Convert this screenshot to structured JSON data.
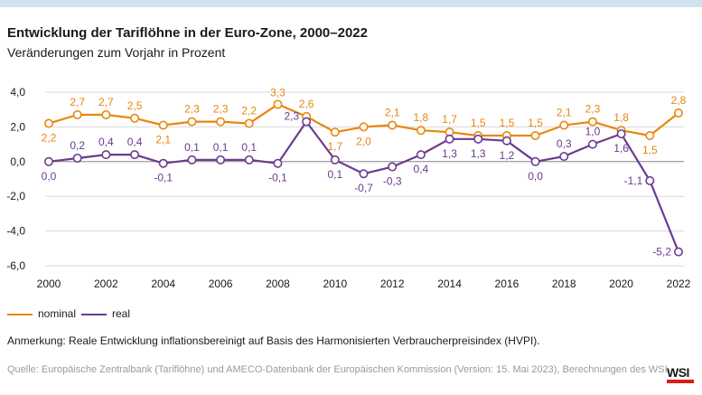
{
  "chart_data": {
    "type": "line",
    "title": "Entwicklung der Tariflöhne in der Euro-Zone, 2000–2022",
    "subtitle": "Veränderungen zum Vorjahr in Prozent",
    "x": [
      2000,
      2001,
      2002,
      2003,
      2004,
      2005,
      2006,
      2007,
      2008,
      2009,
      2010,
      2011,
      2012,
      2013,
      2014,
      2015,
      2016,
      2017,
      2018,
      2019,
      2020,
      2021,
      2022
    ],
    "x_tick_labels": [
      "2000",
      "2002",
      "2004",
      "2006",
      "2008",
      "2010",
      "2012",
      "2014",
      "2016",
      "2018",
      "2020",
      "2022"
    ],
    "y_tick_labels": [
      "4,0",
      "2,0",
      "0,0",
      "-2,0",
      "-4,0",
      "-6,0"
    ],
    "y_ticks": [
      4,
      2,
      0,
      -2,
      -4,
      -6
    ],
    "ylim": [
      -6,
      4
    ],
    "series": [
      {
        "name": "nominal",
        "color": "#e8860f",
        "values": [
          2.2,
          2.7,
          2.7,
          2.5,
          2.1,
          2.3,
          2.3,
          2.2,
          3.3,
          2.6,
          1.7,
          2.0,
          2.1,
          1.8,
          1.7,
          1.5,
          1.5,
          1.5,
          2.1,
          2.3,
          1.8,
          1.5,
          2.8
        ],
        "labels": [
          "2,2",
          "2,7",
          "2,7",
          "2,5",
          "2,1",
          "2,3",
          "2,3",
          "2,2",
          "3,3",
          "2,6",
          "1,7",
          "2,0",
          "2,1",
          "1,8",
          "1,7",
          "1,5",
          "1,5",
          "1,5",
          "2,1",
          "2,3",
          "1,8",
          "1,5",
          "2,8"
        ]
      },
      {
        "name": "real",
        "color": "#6b3b8f",
        "values": [
          0.0,
          0.2,
          0.4,
          0.4,
          -0.1,
          0.1,
          0.1,
          0.1,
          -0.1,
          2.3,
          0.1,
          -0.7,
          -0.3,
          0.4,
          1.3,
          1.3,
          1.2,
          0.0,
          0.3,
          1.0,
          1.6,
          -1.1,
          -5.2
        ],
        "labels": [
          "0,0",
          "0,2",
          "0,4",
          "0,4",
          "-0,1",
          "0,1",
          "0,1",
          "0,1",
          "-0,1",
          "2,3",
          "0,1",
          "-0,7",
          "-0,3",
          "0,4",
          "1,3",
          "1,3",
          "1,2",
          "0,0",
          "0,3",
          "1,0",
          "1,6",
          "-1,1",
          "-5,2"
        ]
      }
    ],
    "grid": true
  },
  "legend": {
    "nominal": "nominal",
    "real": "real"
  },
  "note": "Anmerkung: Reale Entwicklung inflationsbereinigt auf Basis des Harmonisierten Verbraucherpreisindex (HVPI).",
  "source": "Quelle: Europäische Zentralbank (Tariflöhne) und AMECO-Datenbank der Europäischen Kommission (Version: 15. Mai 2023), Berechnungen des WSI.",
  "logo": "WSI"
}
